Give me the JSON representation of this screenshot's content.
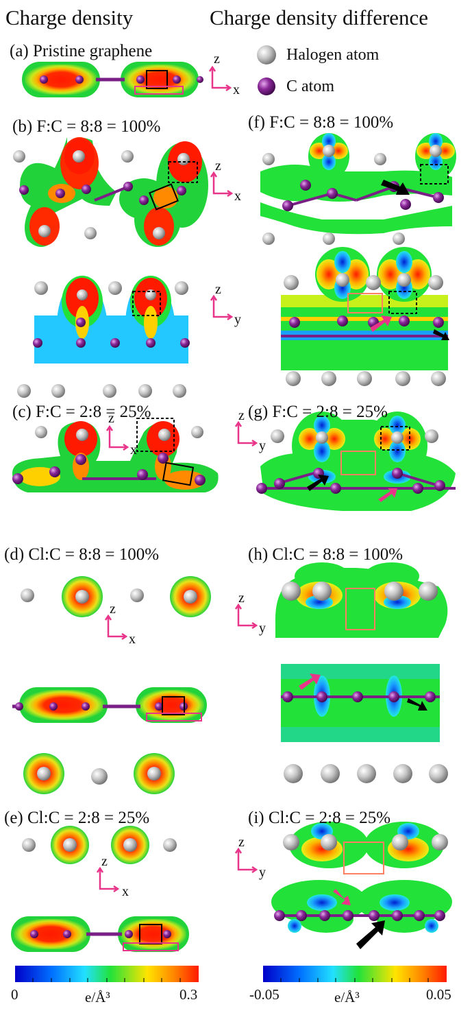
{
  "headers": {
    "left": "Charge density",
    "right": "Charge density difference"
  },
  "legend": {
    "halogen": "Halogen atom",
    "carbon": "C atom",
    "halogen_color": "#c8c8c8",
    "carbon_color": "#7a1f86"
  },
  "panels": {
    "a": "(a) Pristine graphene",
    "b": "(b) F:C = 8:8 = 100%",
    "c": "(c) F:C = 2:8 = 25%",
    "d": "(d) Cl:C = 8:8 = 100%",
    "e": "(e) Cl:C = 2:8 = 25%",
    "f": "(f) F:C = 8:8 = 100%",
    "g": "(g) F:C = 2:8 = 25%",
    "h": "(h) Cl:C = 8:8 = 100%",
    "i": "(i) Cl:C = 2:8 = 25%"
  },
  "axes": {
    "z": "z",
    "x": "x",
    "y": "y"
  },
  "colorbars": {
    "left": {
      "min": "0",
      "max": "0.3",
      "unit": "e/Å³"
    },
    "right": {
      "min": "-0.05",
      "max": "0.05",
      "unit": "e/Å³"
    }
  },
  "colors": {
    "jet_blue": "#0000c8",
    "jet_cyan": "#22c8ff",
    "jet_green": "#22e23a",
    "jet_yellow": "#ffe400",
    "jet_red": "#ff1a00",
    "accent_pink": "#e8358a",
    "box_orange": "#ff8060"
  }
}
